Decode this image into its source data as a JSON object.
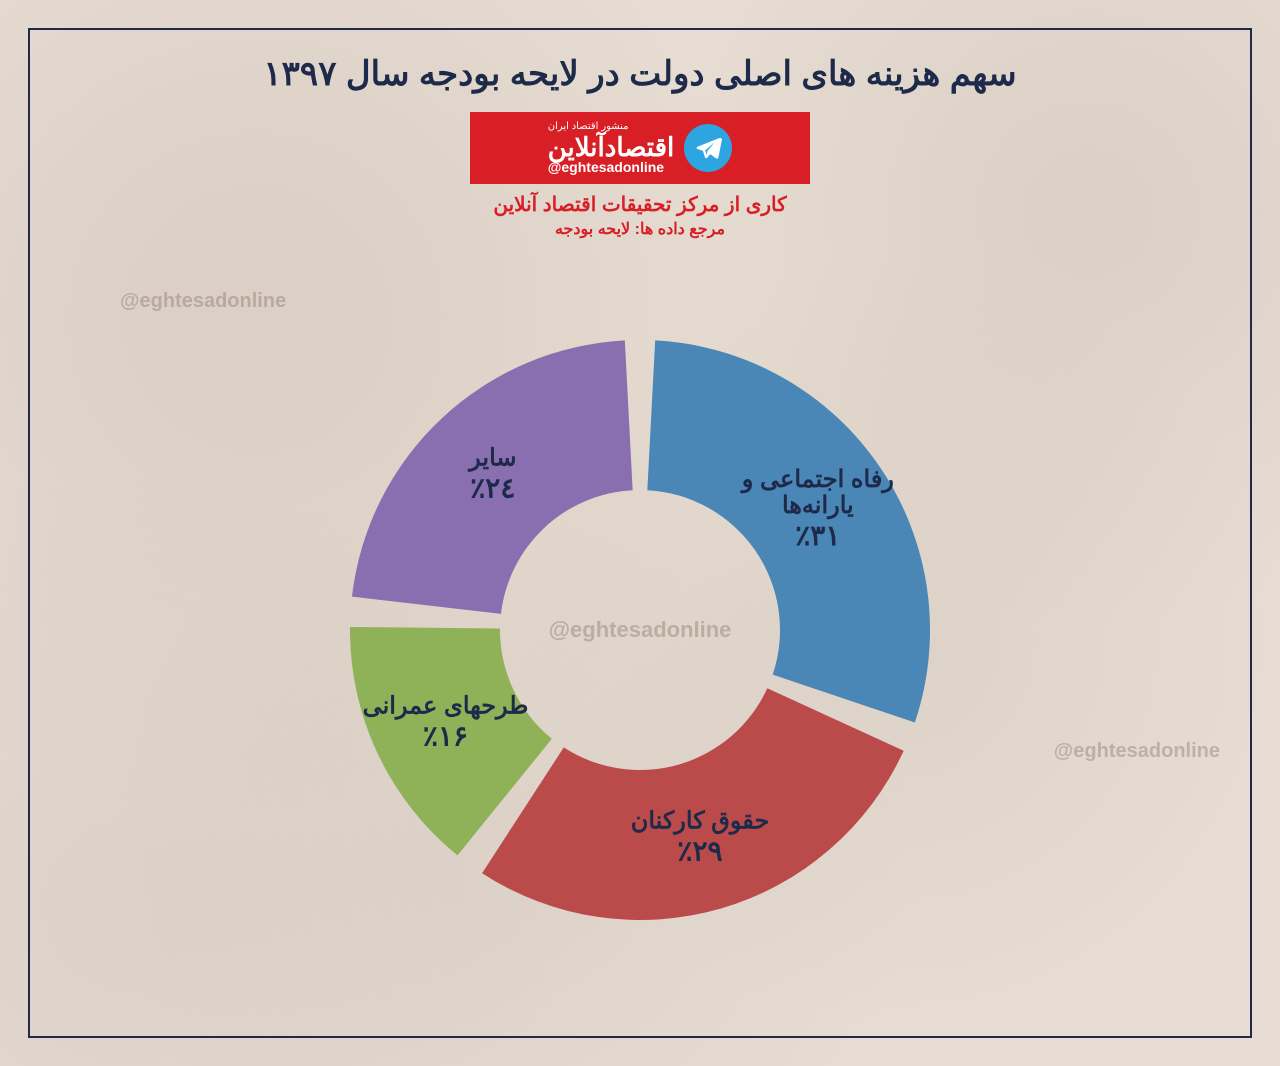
{
  "title": "سهم هزینه های  اصلی دولت در لایحه بودجه سال  ۱۳۹۷",
  "logo": {
    "small_text": "منشور اقتصاد ایران",
    "main_text": "اقتصادآنلاین",
    "handle": "@eghtesadonline",
    "subtitle1": "کاری از مرکز تحقیقات اقتصاد آنلاین",
    "subtitle2": "مرجع داده ها: لایحه بودجه",
    "red": "#d81f26",
    "telegram_bg": "#2ca5e0"
  },
  "watermark": "@eghtesadonline",
  "chart": {
    "type": "donut",
    "inner_radius": 140,
    "outer_radius": 290,
    "gap_deg": 6,
    "background_color": "#e6dcd2",
    "label_color": "#1e2a4a",
    "label_fontsize": 24,
    "pct_fontsize": 28,
    "slices": [
      {
        "label": "رفاه اجتماعی و",
        "label2": "یارانه‌ها",
        "pct_text": "٪۳۱",
        "value": 31,
        "color": "#4a86b6"
      },
      {
        "label": "حقوق کارکنان",
        "label2": "",
        "pct_text": "٪۲۹",
        "value": 29,
        "color": "#bb4b4b"
      },
      {
        "label": "طرحهای عمرانی",
        "label2": "",
        "pct_text": "٪۱۶",
        "value": 16,
        "color": "#8fb158"
      },
      {
        "label": "سایر",
        "label2": "",
        "pct_text": "٪۲٤",
        "value": 24,
        "color": "#8a6fb0"
      }
    ]
  },
  "frame_border_color": "#1e2a4a"
}
